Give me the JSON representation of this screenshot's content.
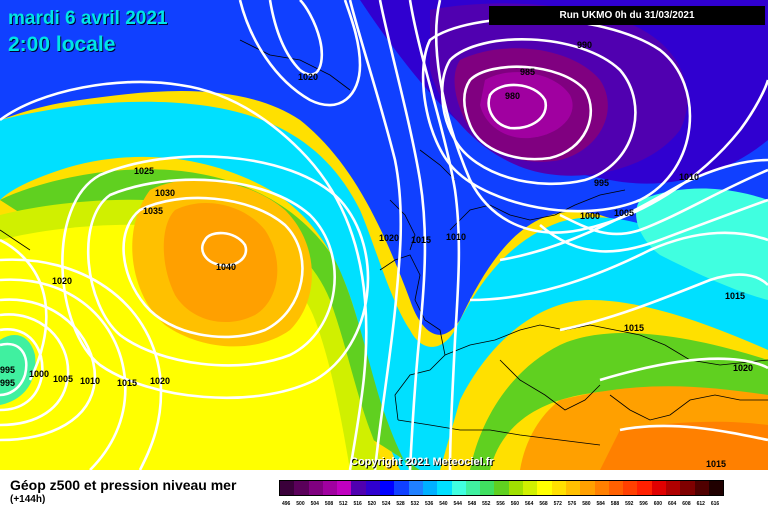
{
  "header": {
    "date": "mardi 6 avril 2021",
    "time": "2:00 locale",
    "run": "Run UKMO 0h du 31/03/2021"
  },
  "footer": {
    "title": "Géop z500 et pression niveau mer",
    "subtitle": "(+144h)",
    "copyright": "Copyright 2021 Meteociel.fr"
  },
  "isobar_labels": [
    "1020",
    "990",
    "985",
    "980",
    "995",
    "1010",
    "1000",
    "1005",
    "1025",
    "1030",
    "1035",
    "1040",
    "1020",
    "1015",
    "1010",
    "1015",
    "1020",
    "995",
    "995",
    "1000",
    "1005",
    "1010",
    "1015",
    "1020",
    "1015",
    "1020",
    "1015"
  ],
  "colorbar": {
    "labels": [
      "496",
      "500",
      "504",
      "508",
      "512",
      "516",
      "520",
      "524",
      "528",
      "532",
      "536",
      "540",
      "544",
      "548",
      "552",
      "556",
      "560",
      "564",
      "568",
      "572",
      "576",
      "580",
      "584",
      "588",
      "592",
      "596",
      "600",
      "604",
      "608",
      "612",
      "616"
    ],
    "colors": [
      "#3a003a",
      "#5a005a",
      "#800080",
      "#a000a0",
      "#c000c0",
      "#5000b0",
      "#3000d0",
      "#0000ff",
      "#1040ff",
      "#2080ff",
      "#00b0ff",
      "#00e0ff",
      "#40ffe0",
      "#40f0a0",
      "#40e060",
      "#60d020",
      "#a0e000",
      "#d0f000",
      "#ffff00",
      "#ffe000",
      "#ffc000",
      "#ffa000",
      "#ff8000",
      "#ff6000",
      "#ff4000",
      "#ff2000",
      "#e00000",
      "#b00000",
      "#800000",
      "#500000",
      "#200000"
    ]
  }
}
